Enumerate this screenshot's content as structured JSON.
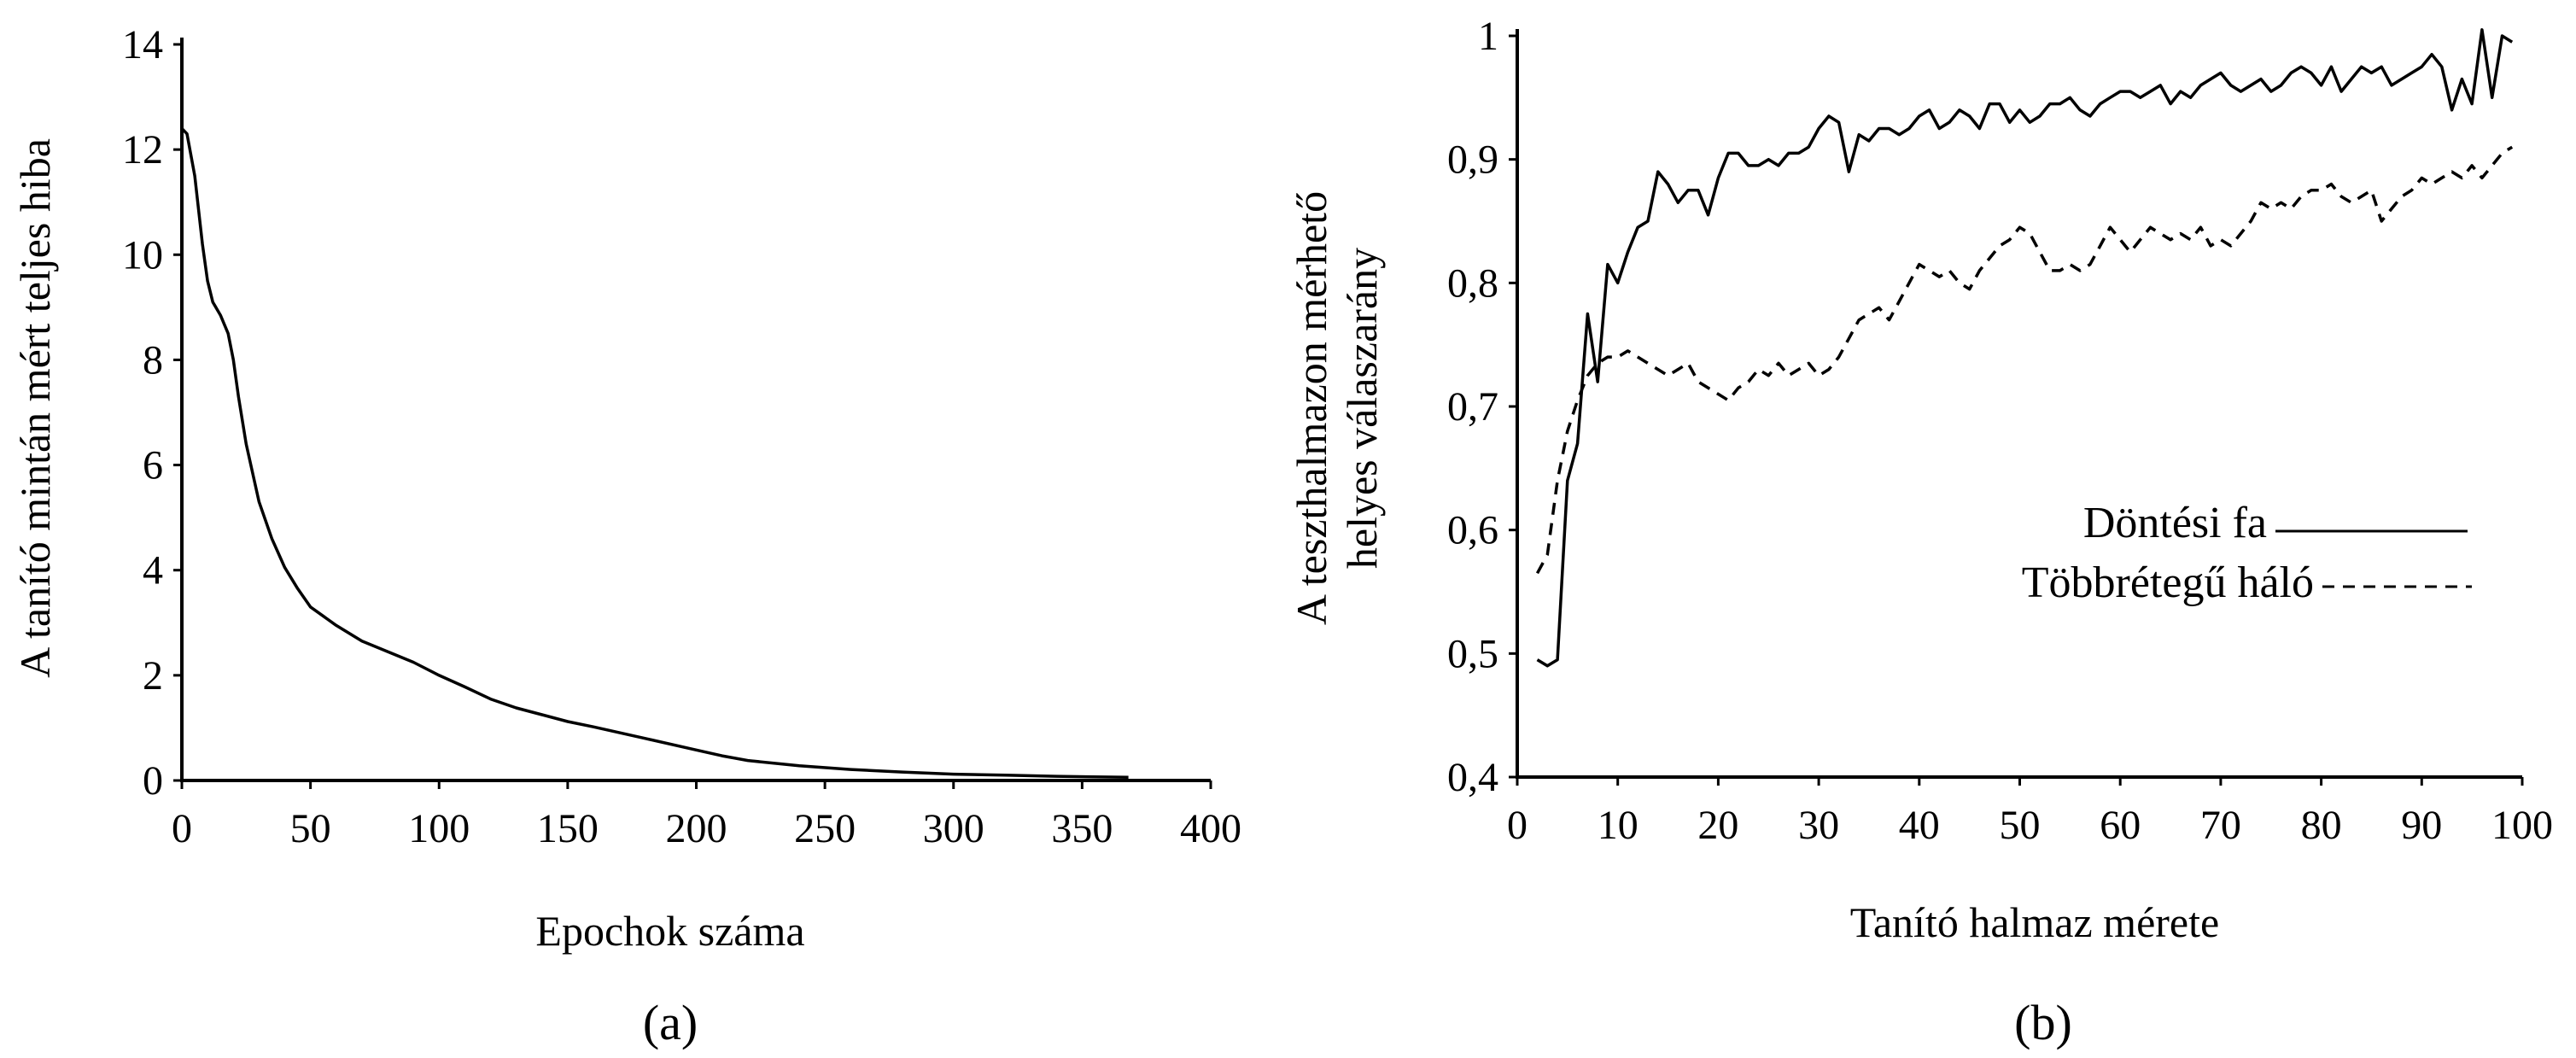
{
  "chart_data": [
    {
      "type": "line",
      "panel": "a",
      "caption": "(a)",
      "title": "",
      "xlabel": "Epochok száma",
      "ylabel": "A tanító mintán mért teljes hiba",
      "xlim": [
        0,
        400
      ],
      "ylim": [
        0,
        14
      ],
      "xticks": [
        "0",
        "50",
        "100",
        "150",
        "200",
        "250",
        "300",
        "350",
        "400"
      ],
      "yticks": [
        "0",
        "2",
        "4",
        "6",
        "8",
        "10",
        "12",
        "14"
      ],
      "grid": false,
      "series": [
        {
          "style": "solid",
          "x": [
            0,
            2,
            5,
            8,
            10,
            12,
            15,
            18,
            20,
            22,
            25,
            30,
            35,
            40,
            45,
            50,
            60,
            70,
            80,
            90,
            100,
            110,
            120,
            130,
            140,
            150,
            160,
            180,
            200,
            210,
            220,
            240,
            260,
            280,
            300,
            320,
            340,
            368
          ],
          "y": [
            12.4,
            12.3,
            11.5,
            10.2,
            9.5,
            9.1,
            8.85,
            8.5,
            8.0,
            7.3,
            6.4,
            5.3,
            4.6,
            4.05,
            3.65,
            3.3,
            2.95,
            2.65,
            2.45,
            2.25,
            2.0,
            1.78,
            1.55,
            1.38,
            1.25,
            1.12,
            1.02,
            0.8,
            0.58,
            0.47,
            0.38,
            0.28,
            0.21,
            0.16,
            0.12,
            0.1,
            0.08,
            0.06
          ]
        }
      ]
    },
    {
      "type": "line",
      "panel": "b",
      "caption": "(b)",
      "title": "",
      "xlabel": "Tanító halmaz mérete",
      "ylabel_lines": [
        "A teszthalmazon mérhető",
        "helyes válaszarány"
      ],
      "xlim": [
        0,
        100
      ],
      "ylim": [
        0.4,
        1.0
      ],
      "xticks": [
        "0",
        "10",
        "20",
        "30",
        "40",
        "50",
        "60",
        "70",
        "80",
        "90",
        "100"
      ],
      "yticks": [
        "0,4",
        "0,5",
        "0,6",
        "0,7",
        "0,8",
        "0,9",
        "1"
      ],
      "grid": false,
      "legend_position": "center-right",
      "series": [
        {
          "name": "Döntési fa",
          "style": "solid",
          "x": [
            2,
            3,
            4,
            5,
            6,
            7,
            8,
            9,
            10,
            11,
            12,
            13,
            14,
            15,
            16,
            17,
            18,
            19,
            20,
            21,
            22,
            23,
            24,
            25,
            26,
            27,
            28,
            29,
            30,
            31,
            32,
            33,
            34,
            35,
            36,
            37,
            38,
            39,
            40,
            41,
            42,
            43,
            44,
            45,
            46,
            47,
            48,
            49,
            50,
            51,
            52,
            53,
            54,
            55,
            56,
            57,
            58,
            59,
            60,
            61,
            62,
            63,
            64,
            65,
            66,
            67,
            68,
            69,
            70,
            71,
            72,
            73,
            74,
            75,
            76,
            77,
            78,
            79,
            80,
            81,
            82,
            83,
            84,
            85,
            86,
            87,
            88,
            89,
            90,
            91,
            92,
            93,
            94,
            95,
            96,
            97,
            98,
            99
          ],
          "y": [
            0.495,
            0.49,
            0.495,
            0.64,
            0.67,
            0.775,
            0.72,
            0.815,
            0.8,
            0.825,
            0.845,
            0.85,
            0.89,
            0.88,
            0.865,
            0.875,
            0.875,
            0.855,
            0.885,
            0.905,
            0.905,
            0.895,
            0.895,
            0.9,
            0.895,
            0.905,
            0.905,
            0.91,
            0.925,
            0.935,
            0.93,
            0.89,
            0.92,
            0.915,
            0.925,
            0.925,
            0.92,
            0.925,
            0.935,
            0.94,
            0.925,
            0.93,
            0.94,
            0.935,
            0.925,
            0.945,
            0.945,
            0.93,
            0.94,
            0.93,
            0.935,
            0.945,
            0.945,
            0.95,
            0.94,
            0.935,
            0.945,
            0.95,
            0.955,
            0.955,
            0.95,
            0.955,
            0.96,
            0.945,
            0.955,
            0.95,
            0.96,
            0.965,
            0.97,
            0.96,
            0.955,
            0.96,
            0.965,
            0.955,
            0.96,
            0.97,
            0.975,
            0.97,
            0.96,
            0.975,
            0.955,
            0.965,
            0.975,
            0.97,
            0.975,
            0.96,
            0.965,
            0.97,
            0.975,
            0.985,
            0.975,
            0.94,
            0.965,
            0.945,
            1.005,
            0.95,
            1.0,
            0.995
          ]
        },
        {
          "name": "Többrétegű háló",
          "style": "dashed",
          "x": [
            2,
            3,
            4,
            5,
            6,
            7,
            8,
            9,
            10,
            11,
            12,
            13,
            14,
            15,
            16,
            17,
            18,
            19,
            20,
            21,
            22,
            23,
            24,
            25,
            26,
            27,
            28,
            29,
            30,
            31,
            32,
            33,
            34,
            35,
            36,
            37,
            38,
            39,
            40,
            41,
            42,
            43,
            44,
            45,
            46,
            47,
            48,
            49,
            50,
            51,
            52,
            53,
            54,
            55,
            56,
            57,
            58,
            59,
            60,
            61,
            62,
            63,
            64,
            65,
            66,
            67,
            68,
            69,
            70,
            71,
            72,
            73,
            74,
            75,
            76,
            77,
            78,
            79,
            80,
            81,
            82,
            83,
            84,
            85,
            86,
            87,
            88,
            89,
            90,
            91,
            92,
            93,
            94,
            95,
            96,
            97,
            98,
            99
          ],
          "y": [
            0.565,
            0.58,
            0.64,
            0.68,
            0.705,
            0.725,
            0.735,
            0.74,
            0.74,
            0.745,
            0.74,
            0.735,
            0.73,
            0.725,
            0.73,
            0.735,
            0.72,
            0.715,
            0.71,
            0.705,
            0.715,
            0.72,
            0.73,
            0.725,
            0.735,
            0.725,
            0.73,
            0.735,
            0.725,
            0.73,
            0.74,
            0.755,
            0.77,
            0.775,
            0.78,
            0.77,
            0.785,
            0.8,
            0.815,
            0.81,
            0.805,
            0.81,
            0.8,
            0.795,
            0.81,
            0.82,
            0.83,
            0.835,
            0.845,
            0.84,
            0.825,
            0.81,
            0.81,
            0.815,
            0.81,
            0.815,
            0.83,
            0.845,
            0.835,
            0.825,
            0.835,
            0.845,
            0.84,
            0.835,
            0.84,
            0.835,
            0.845,
            0.83,
            0.835,
            0.83,
            0.84,
            0.85,
            0.865,
            0.86,
            0.865,
            0.86,
            0.87,
            0.875,
            0.875,
            0.88,
            0.87,
            0.865,
            0.87,
            0.875,
            0.85,
            0.86,
            0.87,
            0.875,
            0.885,
            0.88,
            0.885,
            0.89,
            0.885,
            0.895,
            0.885,
            0.895,
            0.905,
            0.91
          ]
        }
      ]
    }
  ]
}
